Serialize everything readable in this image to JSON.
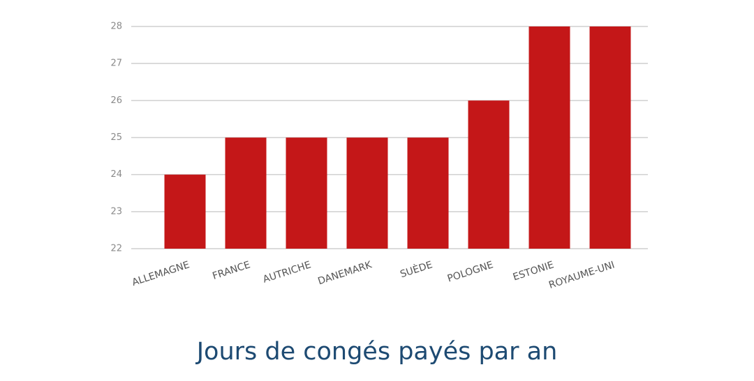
{
  "chart_data": {
    "type": "bar",
    "title": "Jours de congés payés par an",
    "categories": [
      "ALLEMAGNE",
      "FRANCE",
      "AUTRICHE",
      "DANEMARK",
      "SUÈDE",
      "POLOGNE",
      "ESTONIE",
      "ROYAUME-UNI"
    ],
    "values": [
      24,
      25,
      25,
      25,
      25,
      26,
      28,
      28
    ],
    "color": "#c41718",
    "ylim": [
      22,
      28
    ],
    "yticks": [
      22,
      23,
      24,
      25,
      26,
      27,
      28
    ],
    "grid": true
  }
}
